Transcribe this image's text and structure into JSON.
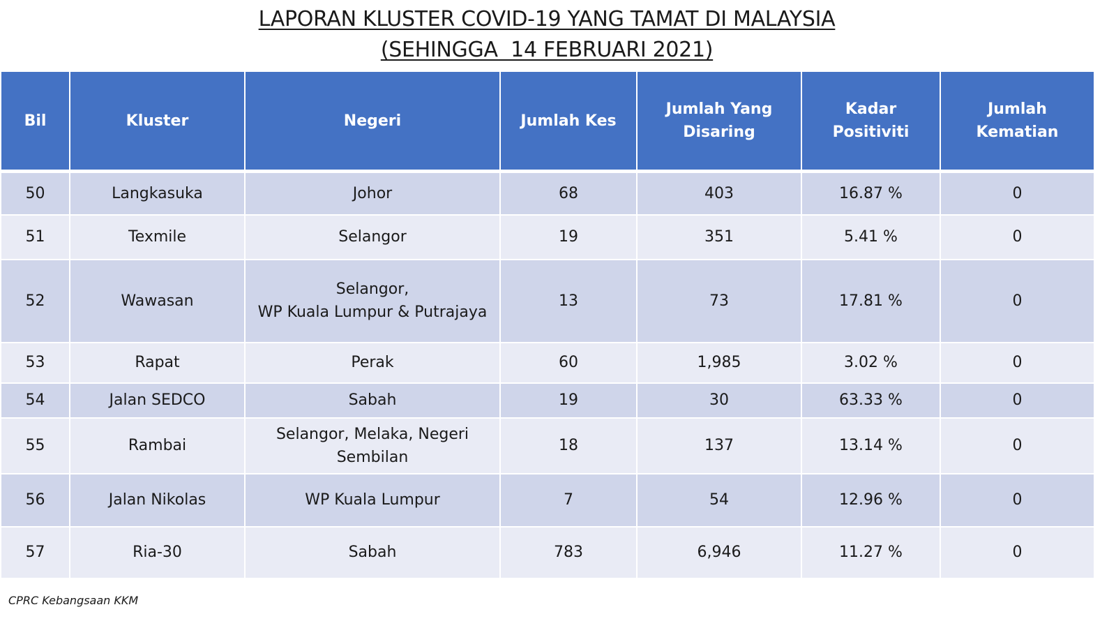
{
  "title": {
    "line1": "LAPORAN KLUSTER COVID-19 YANG TAMAT DI MALAYSIA",
    "line2": "(SEHINGGA  14 FEBRUARI 2021)"
  },
  "table": {
    "headers": {
      "bil": "Bil",
      "kluster": "Kluster",
      "negeri": "Negeri",
      "jumlah_kes": "Jumlah Kes",
      "jumlah_disaring_1": "Jumlah Yang",
      "jumlah_disaring_2": "Disaring",
      "kadar_positiviti": "Kadar Positiviti",
      "jumlah_kematian": "Jumlah Kematian"
    },
    "rows": [
      {
        "bil": "50",
        "kluster": "Langkasuka",
        "negeri_1": "Johor",
        "negeri_2": "",
        "kes": "68",
        "disaring": "403",
        "positiviti": "16.87 %",
        "kematian": "0"
      },
      {
        "bil": "51",
        "kluster": "Texmile",
        "negeri_1": "Selangor",
        "negeri_2": "",
        "kes": "19",
        "disaring": "351",
        "positiviti": "5.41 %",
        "kematian": "0"
      },
      {
        "bil": "52",
        "kluster": "Wawasan",
        "negeri_1": "Selangor,",
        "negeri_2": "WP Kuala Lumpur & Putrajaya",
        "kes": "13",
        "disaring": "73",
        "positiviti": "17.81 %",
        "kematian": "0"
      },
      {
        "bil": "53",
        "kluster": "Rapat",
        "negeri_1": "Perak",
        "negeri_2": "",
        "kes": "60",
        "disaring": "1,985",
        "positiviti": "3.02 %",
        "kematian": "0"
      },
      {
        "bil": "54",
        "kluster": "Jalan SEDCO",
        "negeri_1": "Sabah",
        "negeri_2": "",
        "kes": "19",
        "disaring": "30",
        "positiviti": "63.33 %",
        "kematian": "0"
      },
      {
        "bil": "55",
        "kluster": "Rambai",
        "negeri_1": "Selangor, Melaka, Negeri",
        "negeri_2": "Sembilan",
        "kes": "18",
        "disaring": "137",
        "positiviti": "13.14 %",
        "kematian": "0"
      },
      {
        "bil": "56",
        "kluster": "Jalan Nikolas",
        "negeri_1": "WP Kuala Lumpur",
        "negeri_2": "",
        "kes": "7",
        "disaring": "54",
        "positiviti": "12.96 %",
        "kematian": "0"
      },
      {
        "bil": "57",
        "kluster": "Ria-30",
        "negeri_1": "Sabah",
        "negeri_2": "",
        "kes": "783",
        "disaring": "6,946",
        "positiviti": "11.27 %",
        "kematian": "0"
      }
    ]
  },
  "footer": "CPRC Kebangsaan KKM"
}
